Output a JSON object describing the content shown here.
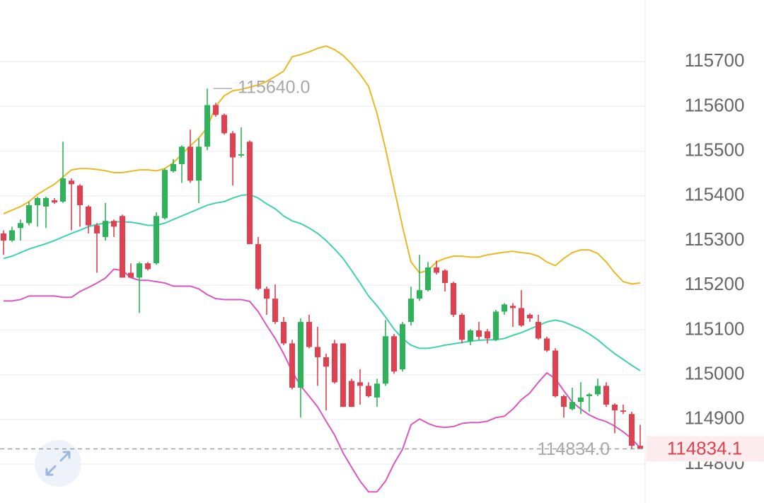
{
  "chart_data": {
    "type": "candlestick",
    "up_color": "#2fb35a",
    "down_color": "#e0404f",
    "ylim": [
      114713,
      115838
    ],
    "yticks": [
      114800,
      114900,
      115000,
      115100,
      115200,
      115300,
      115400,
      115500,
      115600,
      115700
    ],
    "grid": true,
    "open": [
      115316,
      115300,
      115328,
      115339,
      115379,
      115376,
      115390,
      115387,
      115434,
      115423,
      115376,
      115334,
      115308,
      115344,
      115355,
      115228,
      115217,
      115249,
      115249,
      115350,
      115455,
      115471,
      115510,
      115434,
      115510,
      115603,
      115581,
      115540,
      115490,
      115521,
      115292,
      115192,
      115170,
      115118,
      115070,
      114971,
      115118,
      115062,
      115039,
      115070,
      115070,
      114986,
      114983,
      114975,
      114949,
      114980,
      115086,
      115012,
      115118,
      115170,
      115189,
      115240,
      115233,
      115205,
      115134,
      115075,
      115099,
      115097,
      115078,
      115141,
      115154,
      115149,
      115134,
      115118,
      115081,
      115054,
      114952,
      114923,
      114939,
      114952,
      114956,
      114975,
      114933,
      114920,
      114912,
      114841
    ],
    "high": [
      115323,
      115331,
      115347,
      115387,
      115398,
      115398,
      115395,
      115521,
      115439,
      115426,
      115379,
      115339,
      115384,
      115347,
      115358,
      115249,
      115252,
      115252,
      115363,
      115461,
      115482,
      115513,
      115548,
      115529,
      115640,
      115608,
      115584,
      115545,
      115553,
      115524,
      115308,
      115197,
      115202,
      115129,
      115078,
      115126,
      115134,
      115107,
      115047,
      115078,
      115070,
      114991,
      115012,
      114983,
      114991,
      115122,
      115091,
      115118,
      115197,
      115268,
      115252,
      115255,
      115236,
      115208,
      115138,
      115102,
      115118,
      115102,
      115145,
      115160,
      115160,
      115189,
      115137,
      115134,
      115085,
      115059,
      114955,
      114971,
      114983,
      114959,
      114991,
      114983,
      114936,
      114933,
      114917,
      114888
    ],
    "low": [
      115268,
      115297,
      115300,
      115334,
      115331,
      115328,
      115382,
      115384,
      115323,
      115331,
      115316,
      115228,
      115300,
      115308,
      115217,
      115217,
      115138,
      115233,
      115246,
      115347,
      115452,
      115429,
      115429,
      115384,
      115502,
      115577,
      115537,
      115423,
      115486,
      115292,
      115189,
      115134,
      115113,
      115066,
      114967,
      114904,
      115059,
      114975,
      114920,
      114980,
      114928,
      114928,
      114933,
      114949,
      114928,
      114975,
      115002,
      115007,
      115110,
      115165,
      115186,
      115224,
      115186,
      115129,
      115070,
      115066,
      115078,
      115070,
      115075,
      115134,
      115107,
      115107,
      115118,
      115078,
      115051,
      114949,
      114904,
      114920,
      114912,
      114917,
      114952,
      114928,
      114869,
      114912,
      114834,
      114834.1
    ],
    "close": [
      115300,
      115323,
      115339,
      115379,
      115395,
      115395,
      115385,
      115439,
      115426,
      115379,
      115334,
      115316,
      115344,
      115331,
      115217,
      115217,
      115249,
      115236,
      115355,
      115458,
      115471,
      115510,
      115434,
      115510,
      115603,
      115581,
      115540,
      115486,
      115493,
      115292,
      115192,
      115170,
      115118,
      115070,
      114971,
      115118,
      115062,
      115039,
      115018,
      114983,
      114928,
      114928,
      114975,
      114952,
      114980,
      115086,
      115007,
      115113,
      115170,
      115189,
      115240,
      115228,
      115205,
      115134,
      115078,
      115099,
      115085,
      115081,
      115141,
      115157,
      115149,
      115110,
      115126,
      115081,
      115054,
      114952,
      114928,
      114939,
      114949,
      114956,
      114975,
      114933,
      114920,
      114917,
      114841,
      114834.1
    ],
    "series": [
      {
        "color": "#e8b923",
        "values": [
          115360,
          115368,
          115376,
          115387,
          115403,
          115415,
          115426,
          115442,
          115458,
          115461,
          115461,
          115459,
          115456,
          115452,
          115452,
          115455,
          115458,
          115458,
          115456,
          115461,
          115474,
          115493,
          115512,
          115529,
          115553,
          115600,
          115624,
          115635,
          115638,
          115643,
          115648,
          115656,
          115667,
          115679,
          115711,
          115716,
          115722,
          115730,
          115735,
          115727,
          115714,
          115695,
          115672,
          115645,
          115584,
          115505,
          115418,
          115331,
          115252,
          115228,
          115233,
          115252,
          115260,
          115265,
          115265,
          115263,
          115263,
          115268,
          115271,
          115274,
          115276,
          115273,
          115271,
          115265,
          115252,
          115244,
          115260,
          115273,
          115279,
          115279,
          115271,
          115252,
          115228,
          115208,
          115203,
          115205
        ]
      },
      {
        "color": "#3fd1b0",
        "values": [
          115260,
          115265,
          115273,
          115281,
          115287,
          115293,
          115300,
          115308,
          115316,
          115323,
          115331,
          115336,
          115339,
          115342,
          115342,
          115341,
          115338,
          115334,
          115334,
          115339,
          115347,
          115355,
          115363,
          115371,
          115379,
          115384,
          115387,
          115395,
          115401,
          115403,
          115395,
          115382,
          115371,
          115355,
          115344,
          115338,
          115328,
          115316,
          115300,
          115281,
          115260,
          115233,
          115205,
          115176,
          115154,
          115129,
          115102,
          115081,
          115066,
          115059,
          115059,
          115062,
          115066,
          115069,
          115072,
          115075,
          115077,
          115078,
          115078,
          115081,
          115088,
          115094,
          115102,
          115110,
          115118,
          115122,
          115118,
          115110,
          115102,
          115091,
          115078,
          115062,
          115047,
          115034,
          115021,
          115009
        ]
      },
      {
        "color": "#d957c0",
        "values": [
          115165,
          115165,
          115168,
          115176,
          115176,
          115176,
          115176,
          115173,
          115173,
          115186,
          115195,
          115205,
          115216,
          115236,
          115233,
          115217,
          115211,
          115211,
          115208,
          115205,
          115198,
          115198,
          115198,
          115192,
          115179,
          115170,
          115168,
          115168,
          115168,
          115164,
          115141,
          115110,
          115081,
          115047,
          115007,
          114975,
          114952,
          114928,
          114896,
          114865,
          114825,
          114793,
          114762,
          114738,
          114738,
          114762,
          114801,
          114833,
          114888,
          114901,
          114891,
          114884,
          114882,
          114884,
          114891,
          114893,
          114893,
          114896,
          114904,
          114907,
          114923,
          114944,
          114959,
          114983,
          115004,
          114991,
          114964,
          114939,
          114923,
          114910,
          114901,
          114895,
          114885,
          114872,
          114857,
          114836
        ]
      }
    ],
    "markers": [
      {
        "value": 115640,
        "label": "115640.0"
      },
      {
        "value": 114834,
        "label": "114834.0"
      }
    ],
    "last_price": {
      "value": 114834.1,
      "label": "114834.1"
    }
  }
}
